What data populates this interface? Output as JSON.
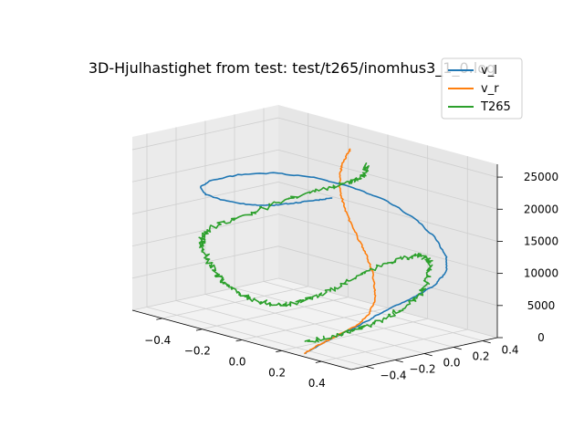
{
  "chart_data": {
    "type": "line3d",
    "title": "3D-Hjulhastighet from test: test/t265/inomhus3_1_0.log",
    "x_ticks": [
      "−0.4",
      "−0.2",
      "0.0",
      "0.2",
      "0.4"
    ],
    "y_ticks": [
      "−0.4",
      "−0.2",
      "0.0",
      "0.2",
      "0.4"
    ],
    "z_ticks": [
      "0",
      "5000",
      "10000",
      "15000",
      "20000",
      "25000"
    ],
    "xlim": [
      -0.55,
      0.55
    ],
    "ylim": [
      -0.5,
      0.5
    ],
    "zlim": [
      0,
      27000
    ],
    "grid": true,
    "legend_position": "top-right",
    "series": [
      {
        "name": "v_l",
        "color": "#1f77b4",
        "points": [
          [
            0.28,
            -0.45,
            0
          ],
          [
            0.32,
            -0.35,
            1800
          ],
          [
            0.35,
            -0.18,
            3500
          ],
          [
            0.36,
            -0.08,
            4600
          ],
          [
            0.38,
            0.02,
            5800
          ],
          [
            0.42,
            0.12,
            7200
          ],
          [
            0.46,
            0.2,
            9000
          ],
          [
            0.47,
            0.26,
            10800
          ],
          [
            0.44,
            0.3,
            12600
          ],
          [
            0.36,
            0.34,
            14600
          ],
          [
            0.24,
            0.36,
            16600
          ],
          [
            0.1,
            0.36,
            18200
          ],
          [
            -0.05,
            0.33,
            19200
          ],
          [
            -0.2,
            0.27,
            19800
          ],
          [
            -0.33,
            0.17,
            19900
          ],
          [
            -0.43,
            0.06,
            19300
          ],
          [
            -0.49,
            -0.04,
            18500
          ],
          [
            -0.5,
            -0.1,
            17600
          ],
          [
            -0.46,
            -0.12,
            16900
          ],
          [
            -0.38,
            -0.1,
            16500
          ],
          [
            -0.3,
            -0.05,
            16300
          ],
          [
            -0.22,
            0.0,
            16600
          ],
          [
            -0.14,
            0.06,
            17400
          ],
          [
            -0.06,
            0.1,
            18300
          ],
          [
            0.0,
            0.12,
            19000
          ]
        ]
      },
      {
        "name": "v_r",
        "color": "#ff7f0e",
        "points": [
          [
            0.28,
            -0.45,
            0
          ],
          [
            0.3,
            -0.4,
            1000
          ],
          [
            0.33,
            -0.3,
            2400
          ],
          [
            0.36,
            -0.2,
            3800
          ],
          [
            0.36,
            -0.12,
            5200
          ],
          [
            0.34,
            -0.05,
            6800
          ],
          [
            0.3,
            0.0,
            8500
          ],
          [
            0.26,
            0.04,
            10200
          ],
          [
            0.2,
            0.08,
            12000
          ],
          [
            0.13,
            0.12,
            13800
          ],
          [
            0.06,
            0.16,
            15600
          ],
          [
            0.0,
            0.2,
            17400
          ],
          [
            -0.05,
            0.24,
            19200
          ],
          [
            -0.08,
            0.28,
            21000
          ],
          [
            -0.09,
            0.31,
            22600
          ],
          [
            -0.08,
            0.33,
            24000
          ],
          [
            -0.07,
            0.34,
            25000
          ]
        ]
      },
      {
        "name": "T265",
        "color": "#2ca02c",
        "points": [
          [
            0.0,
            0.35,
            23200
          ],
          [
            0.02,
            0.32,
            22000
          ],
          [
            0.0,
            0.28,
            21000
          ],
          [
            -0.05,
            0.25,
            20000
          ],
          [
            -0.12,
            0.2,
            18800
          ],
          [
            -0.22,
            0.12,
            17000
          ],
          [
            -0.3,
            0.04,
            15200
          ],
          [
            -0.38,
            -0.04,
            13400
          ],
          [
            -0.45,
            -0.1,
            11600
          ],
          [
            -0.48,
            -0.12,
            10000
          ],
          [
            -0.46,
            -0.14,
            8600
          ],
          [
            -0.4,
            -0.18,
            7400
          ],
          [
            -0.32,
            -0.24,
            6400
          ],
          [
            -0.24,
            -0.28,
            5600
          ],
          [
            -0.16,
            -0.3,
            5000
          ],
          [
            -0.08,
            -0.3,
            4600
          ],
          [
            0.0,
            -0.28,
            4400
          ],
          [
            0.06,
            -0.24,
            4800
          ],
          [
            0.12,
            -0.18,
            6000
          ],
          [
            0.18,
            -0.1,
            7600
          ],
          [
            0.22,
            0.0,
            9400
          ],
          [
            0.28,
            0.08,
            11000
          ],
          [
            0.34,
            0.14,
            12400
          ],
          [
            0.4,
            0.18,
            13200
          ],
          [
            0.46,
            0.16,
            12600
          ],
          [
            0.5,
            0.1,
            11000
          ],
          [
            0.52,
            0.02,
            9000
          ],
          [
            0.5,
            -0.08,
            7000
          ],
          [
            0.46,
            -0.18,
            5200
          ],
          [
            0.4,
            -0.28,
            3800
          ],
          [
            0.34,
            -0.38,
            2600
          ],
          [
            0.28,
            -0.45,
            1800
          ]
        ]
      }
    ]
  }
}
